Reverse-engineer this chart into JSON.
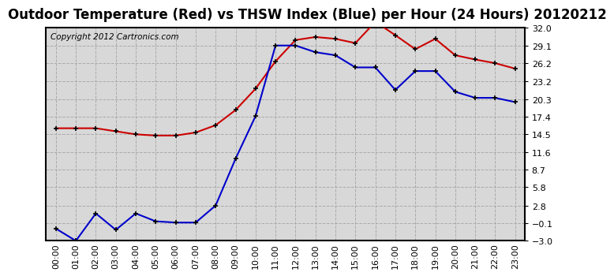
{
  "title": "Outdoor Temperature (Red) vs THSW Index (Blue) per Hour (24 Hours) 20120212",
  "copyright": "Copyright 2012 Cartronics.com",
  "hours": [
    "00:00",
    "01:00",
    "02:00",
    "03:00",
    "04:00",
    "05:00",
    "06:00",
    "07:00",
    "08:00",
    "09:00",
    "10:00",
    "11:00",
    "12:00",
    "13:00",
    "14:00",
    "15:00",
    "16:00",
    "17:00",
    "18:00",
    "19:00",
    "20:00",
    "21:00",
    "22:00",
    "23:00"
  ],
  "red_data": [
    15.5,
    15.5,
    15.5,
    15.0,
    14.5,
    14.3,
    14.3,
    14.8,
    16.0,
    18.5,
    22.0,
    26.5,
    30.0,
    30.5,
    30.2,
    29.5,
    33.0,
    30.8,
    28.5,
    30.2,
    27.5,
    26.8,
    26.2,
    25.3
  ],
  "blue_data": [
    -1.0,
    -3.0,
    1.5,
    -1.2,
    1.5,
    0.2,
    0.0,
    0.0,
    2.8,
    10.5,
    17.5,
    29.1,
    29.1,
    28.0,
    27.5,
    25.5,
    25.5,
    21.8,
    24.9,
    24.9,
    21.5,
    20.5,
    20.5,
    19.8
  ],
  "yticks": [
    -3.0,
    -0.1,
    2.8,
    5.8,
    8.7,
    11.6,
    14.5,
    17.4,
    20.3,
    23.2,
    26.2,
    29.1,
    32.0
  ],
  "ymin": -3.0,
  "ymax": 32.0,
  "red_color": "#cc0000",
  "blue_color": "#0000cc",
  "plot_bg_color": "#d8d8d8",
  "fig_bg_color": "#ffffff",
  "grid_color": "#aaaaaa",
  "title_fontsize": 12,
  "copyright_fontsize": 7.5,
  "tick_fontsize": 8
}
